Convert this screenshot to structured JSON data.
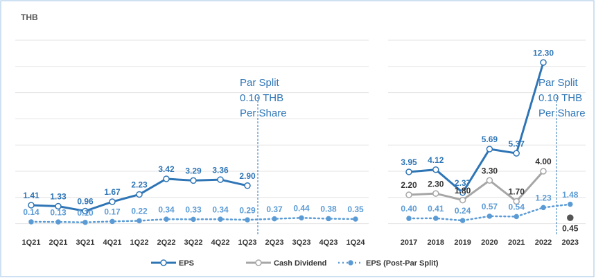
{
  "unit_label": "THB",
  "legend": [
    "EPS",
    "Cash Dividend",
    "EPS (Post-Par Split)"
  ],
  "chart_data": [
    {
      "type": "line",
      "categories": [
        "1Q21",
        "2Q21",
        "3Q21",
        "4Q21",
        "1Q22",
        "2Q22",
        "3Q22",
        "4Q22",
        "1Q23",
        "2Q23",
        "3Q23",
        "4Q23",
        "1Q24"
      ],
      "ylim": [
        0,
        14
      ],
      "yticks": [
        0,
        2,
        4,
        6,
        8,
        10,
        12,
        14
      ],
      "grid": true,
      "annotation": [
        "Par Split",
        "0.10 THB",
        "Per Share"
      ],
      "series": [
        {
          "name": "EPS",
          "color": "#2e75b6",
          "style": "solid",
          "values": [
            1.41,
            1.33,
            0.96,
            1.67,
            2.23,
            3.42,
            3.29,
            3.36,
            2.9,
            null,
            null,
            null,
            null
          ],
          "value_labels": [
            "1.41",
            "1.33",
            "0.96",
            "1.67",
            "2.23",
            "3.42",
            "3.29",
            "3.36",
            "2.90",
            null,
            null,
            null,
            null
          ]
        },
        {
          "name": "EPS (Post-Par Split)",
          "color": "#5b9bd5",
          "style": "dotted",
          "values": [
            0.14,
            0.13,
            0.1,
            0.17,
            0.22,
            0.34,
            0.33,
            0.34,
            0.29,
            0.37,
            0.44,
            0.38,
            0.35
          ],
          "value_labels": [
            "0.14",
            "0.13",
            "0.10",
            "0.17",
            "0.22",
            "0.34",
            "0.33",
            "0.34",
            "0.29",
            "0.37",
            "0.44",
            "0.38",
            "0.35"
          ]
        }
      ]
    },
    {
      "type": "line",
      "categories": [
        "2017",
        "2018",
        "2019",
        "2020",
        "2021",
        "2022",
        "2023"
      ],
      "ylim": [
        0,
        14
      ],
      "yticks": [
        0,
        2,
        4,
        6,
        8,
        10,
        12,
        14
      ],
      "grid": true,
      "annotation": [
        "Par Split",
        "0.10 THB",
        "Per Share"
      ],
      "series": [
        {
          "name": "EPS",
          "color": "#2e75b6",
          "style": "solid",
          "values": [
            3.95,
            4.12,
            2.37,
            5.69,
            5.37,
            12.3,
            null
          ],
          "value_labels": [
            "3.95",
            "4.12",
            "2.37",
            "5.69",
            "5.37",
            "12.30",
            null
          ]
        },
        {
          "name": "Cash Dividend",
          "color": "#a6a6a6",
          "style": "solid",
          "label_color": "#333333",
          "values": [
            2.2,
            2.3,
            1.8,
            3.3,
            1.7,
            4.0,
            0.45
          ],
          "value_labels": [
            "2.20",
            "2.30",
            "1.80",
            "3.30",
            "1.70",
            "4.00",
            "0.45"
          ]
        },
        {
          "name": "EPS (Post-Par Split)",
          "color": "#5b9bd5",
          "style": "dotted",
          "values": [
            0.4,
            0.41,
            0.24,
            0.57,
            0.54,
            1.23,
            1.48
          ],
          "value_labels": [
            "0.40",
            "0.41",
            "0.24",
            "0.57",
            "0.54",
            "1.23",
            "1.48"
          ]
        }
      ]
    }
  ]
}
